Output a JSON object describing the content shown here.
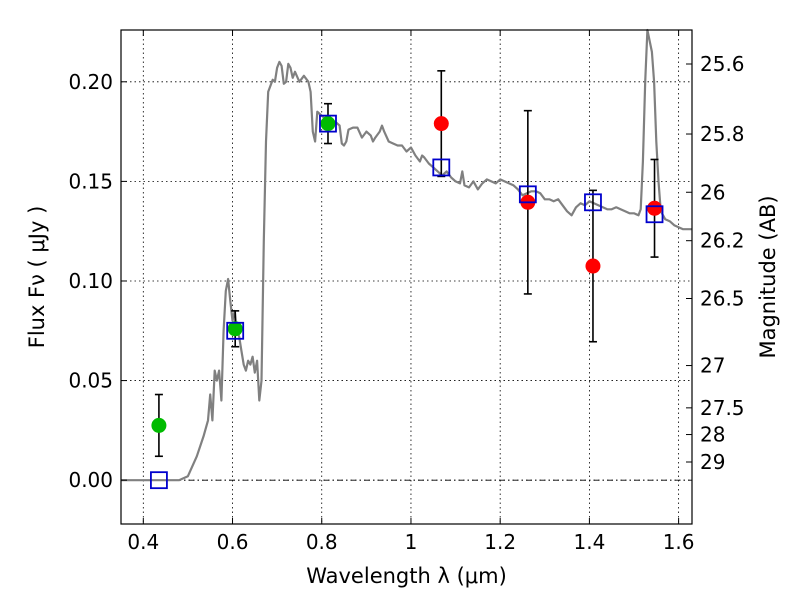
{
  "chart_data": {
    "type": "scatter",
    "xlabel": "Wavelength  λ (μm)",
    "ylabel": "Flux  Fν  ( μJy )",
    "y2label": "Magnitude (AB)",
    "xlim": [
      0.35,
      1.63
    ],
    "ylim": [
      -0.022,
      0.226
    ],
    "grid": true,
    "x_ticks": [
      0.4,
      0.6,
      0.8,
      1.0,
      1.2,
      1.4,
      1.6
    ],
    "x_tick_labels": [
      "0.4",
      "0.6",
      "0.8",
      "1",
      "1.2",
      "1.4",
      "1.6"
    ],
    "y_ticks": [
      0.0,
      0.05,
      0.1,
      0.15,
      0.2
    ],
    "y_tick_labels": [
      "0.00",
      "0.05",
      "0.10",
      "0.15",
      "0.20"
    ],
    "y2_ticks": [
      {
        "value": 25.6,
        "label": "25.6"
      },
      {
        "value": 25.8,
        "label": "25.8"
      },
      {
        "value": 26.0,
        "label": "26"
      },
      {
        "value": 26.2,
        "label": "26.2"
      },
      {
        "value": 26.5,
        "label": "26.5"
      },
      {
        "value": 27.0,
        "label": "27"
      },
      {
        "value": 27.5,
        "label": "27.5"
      },
      {
        "value": 28.0,
        "label": "28"
      },
      {
        "value": 29.0,
        "label": "29"
      }
    ],
    "series": [
      {
        "marker": "circle",
        "color": "#00bb00",
        "points": [
          {
            "x": 0.435,
            "y": 0.0275,
            "err": 0.0155
          },
          {
            "x": 0.606,
            "y": 0.076,
            "err": 0.009
          },
          {
            "x": 0.814,
            "y": 0.179,
            "err": 0.01
          }
        ]
      },
      {
        "marker": "circle",
        "color": "#ff0000",
        "points": [
          {
            "x": 1.068,
            "y": 0.179,
            "err": 0.0265
          },
          {
            "x": 1.262,
            "y": 0.1395,
            "err": 0.046
          },
          {
            "x": 1.408,
            "y": 0.1075,
            "err": 0.038
          },
          {
            "x": 1.546,
            "y": 0.1365,
            "err": 0.0245
          }
        ]
      },
      {
        "marker": "open-square",
        "color": "#0000cc",
        "points": [
          {
            "x": 0.435,
            "y": 0.0
          },
          {
            "x": 0.606,
            "y": 0.075
          },
          {
            "x": 0.814,
            "y": 0.179
          },
          {
            "x": 1.068,
            "y": 0.157
          },
          {
            "x": 1.262,
            "y": 0.1435
          },
          {
            "x": 1.408,
            "y": 0.1395
          },
          {
            "x": 1.546,
            "y": 0.1335
          }
        ]
      }
    ],
    "sed_curve": {
      "color": "#808080",
      "points": [
        [
          0.35,
          0.0
        ],
        [
          0.48,
          0.0
        ],
        [
          0.5,
          0.002
        ],
        [
          0.52,
          0.012
        ],
        [
          0.535,
          0.022
        ],
        [
          0.545,
          0.03
        ],
        [
          0.55,
          0.043
        ],
        [
          0.555,
          0.03
        ],
        [
          0.56,
          0.055
        ],
        [
          0.565,
          0.05
        ],
        [
          0.57,
          0.055
        ],
        [
          0.575,
          0.04
        ],
        [
          0.58,
          0.075
        ],
        [
          0.585,
          0.095
        ],
        [
          0.59,
          0.101
        ],
        [
          0.595,
          0.09
        ],
        [
          0.6,
          0.08
        ],
        [
          0.605,
          0.085
        ],
        [
          0.61,
          0.075
        ],
        [
          0.615,
          0.072
        ],
        [
          0.62,
          0.065
        ],
        [
          0.625,
          0.058
        ],
        [
          0.63,
          0.055
        ],
        [
          0.635,
          0.06
        ],
        [
          0.64,
          0.058
        ],
        [
          0.645,
          0.062
        ],
        [
          0.65,
          0.054
        ],
        [
          0.655,
          0.06
        ],
        [
          0.66,
          0.04
        ],
        [
          0.665,
          0.05
        ],
        [
          0.67,
          0.12
        ],
        [
          0.675,
          0.17
        ],
        [
          0.68,
          0.195
        ],
        [
          0.69,
          0.201
        ],
        [
          0.695,
          0.2
        ],
        [
          0.7,
          0.207
        ],
        [
          0.705,
          0.21
        ],
        [
          0.71,
          0.208
        ],
        [
          0.715,
          0.199
        ],
        [
          0.72,
          0.2
        ],
        [
          0.725,
          0.209
        ],
        [
          0.73,
          0.207
        ],
        [
          0.735,
          0.202
        ],
        [
          0.74,
          0.205
        ],
        [
          0.75,
          0.2
        ],
        [
          0.76,
          0.203
        ],
        [
          0.77,
          0.2
        ],
        [
          0.775,
          0.195
        ],
        [
          0.78,
          0.175
        ],
        [
          0.785,
          0.17
        ],
        [
          0.79,
          0.185
        ],
        [
          0.8,
          0.183
        ],
        [
          0.81,
          0.181
        ],
        [
          0.82,
          0.178
        ],
        [
          0.83,
          0.18
        ],
        [
          0.84,
          0.178
        ],
        [
          0.845,
          0.169
        ],
        [
          0.85,
          0.168
        ],
        [
          0.855,
          0.17
        ],
        [
          0.86,
          0.176
        ],
        [
          0.87,
          0.177
        ],
        [
          0.88,
          0.177
        ],
        [
          0.89,
          0.172
        ],
        [
          0.9,
          0.175
        ],
        [
          0.91,
          0.173
        ],
        [
          0.915,
          0.17
        ],
        [
          0.92,
          0.172
        ],
        [
          0.93,
          0.175
        ],
        [
          0.935,
          0.178
        ],
        [
          0.94,
          0.175
        ],
        [
          0.95,
          0.17
        ],
        [
          0.96,
          0.169
        ],
        [
          0.97,
          0.168
        ],
        [
          0.98,
          0.168
        ],
        [
          0.99,
          0.165
        ],
        [
          1.0,
          0.167
        ],
        [
          1.01,
          0.163
        ],
        [
          1.02,
          0.16
        ],
        [
          1.025,
          0.163
        ],
        [
          1.03,
          0.162
        ],
        [
          1.04,
          0.159
        ],
        [
          1.05,
          0.157
        ],
        [
          1.06,
          0.155
        ],
        [
          1.07,
          0.153
        ],
        [
          1.08,
          0.155
        ],
        [
          1.09,
          0.152
        ],
        [
          1.1,
          0.15
        ],
        [
          1.11,
          0.149
        ],
        [
          1.115,
          0.155
        ],
        [
          1.12,
          0.148
        ],
        [
          1.13,
          0.147
        ],
        [
          1.14,
          0.15
        ],
        [
          1.15,
          0.146
        ],
        [
          1.16,
          0.149
        ],
        [
          1.17,
          0.151
        ],
        [
          1.18,
          0.15
        ],
        [
          1.19,
          0.149
        ],
        [
          1.2,
          0.151
        ],
        [
          1.21,
          0.15
        ],
        [
          1.22,
          0.149
        ],
        [
          1.23,
          0.148
        ],
        [
          1.24,
          0.146
        ],
        [
          1.25,
          0.143
        ],
        [
          1.26,
          0.144
        ],
        [
          1.27,
          0.145
        ],
        [
          1.28,
          0.145
        ],
        [
          1.29,
          0.144
        ],
        [
          1.3,
          0.141
        ],
        [
          1.31,
          0.141
        ],
        [
          1.32,
          0.14
        ],
        [
          1.33,
          0.141
        ],
        [
          1.34,
          0.138
        ],
        [
          1.35,
          0.135
        ],
        [
          1.36,
          0.133
        ],
        [
          1.37,
          0.137
        ],
        [
          1.38,
          0.139
        ],
        [
          1.39,
          0.138
        ],
        [
          1.4,
          0.14
        ],
        [
          1.41,
          0.139
        ],
        [
          1.42,
          0.138
        ],
        [
          1.43,
          0.137
        ],
        [
          1.44,
          0.136
        ],
        [
          1.45,
          0.136
        ],
        [
          1.46,
          0.137
        ],
        [
          1.47,
          0.136
        ],
        [
          1.48,
          0.135
        ],
        [
          1.49,
          0.134
        ],
        [
          1.5,
          0.134
        ],
        [
          1.51,
          0.133
        ],
        [
          1.515,
          0.136
        ],
        [
          1.52,
          0.16
        ],
        [
          1.525,
          0.2
        ],
        [
          1.53,
          0.226
        ],
        [
          1.54,
          0.215
        ],
        [
          1.545,
          0.2
        ],
        [
          1.55,
          0.17
        ],
        [
          1.555,
          0.15
        ],
        [
          1.56,
          0.135
        ],
        [
          1.57,
          0.131
        ],
        [
          1.58,
          0.13
        ],
        [
          1.59,
          0.128
        ],
        [
          1.6,
          0.127
        ],
        [
          1.61,
          0.126
        ],
        [
          1.62,
          0.126
        ],
        [
          1.63,
          0.126
        ]
      ]
    }
  }
}
